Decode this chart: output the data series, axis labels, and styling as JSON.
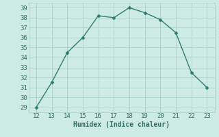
{
  "x": [
    12,
    13,
    14,
    15,
    16,
    17,
    18,
    19,
    20,
    21,
    22,
    23
  ],
  "y": [
    29,
    31.5,
    34.5,
    36,
    38.2,
    38,
    39,
    38.5,
    37.8,
    36.5,
    32.5,
    31
  ],
  "line_color": "#2e7d6e",
  "marker": "D",
  "marker_size": 2.5,
  "xlabel": "Humidex (Indice chaleur)",
  "xlim": [
    11.5,
    23.5
  ],
  "ylim": [
    28.5,
    39.5
  ],
  "xticks": [
    12,
    13,
    14,
    15,
    16,
    17,
    18,
    19,
    20,
    21,
    22,
    23
  ],
  "yticks": [
    29,
    30,
    31,
    32,
    33,
    34,
    35,
    36,
    37,
    38,
    39
  ],
  "bg_color": "#ceeae4",
  "grid_color": "#aed4cc",
  "font_color": "#2e6e64",
  "label_fontsize": 7,
  "tick_fontsize": 6.5
}
